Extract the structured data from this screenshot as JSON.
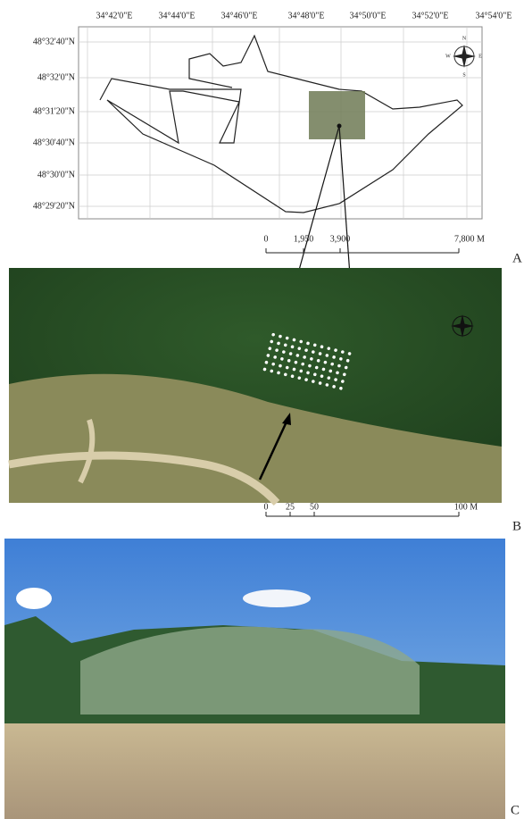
{
  "panel_a": {
    "label": "A",
    "x_labels": [
      "34°42'0\"E",
      "34°44'0\"E",
      "34°46'0\"E",
      "34°48'0\"E",
      "34°50'0\"E",
      "34°52'0\"E",
      "34°54'0\"E"
    ],
    "y_labels": [
      "48°32'40\"N",
      "48°32'0\"N",
      "48°31'20\"N",
      "48°30'40\"N",
      "48°30'0\"N",
      "48°29'20\"N"
    ],
    "scale_labels": [
      "0",
      "1,950",
      "3,900",
      "7,800 M"
    ],
    "compass": {
      "n": "N",
      "s": "S",
      "e": "E",
      "w": "W"
    }
  },
  "panel_b": {
    "label": "B",
    "scale_labels": [
      "0",
      "25",
      "50",
      "100 M"
    ]
  },
  "panel_c": {
    "label": "C"
  }
}
